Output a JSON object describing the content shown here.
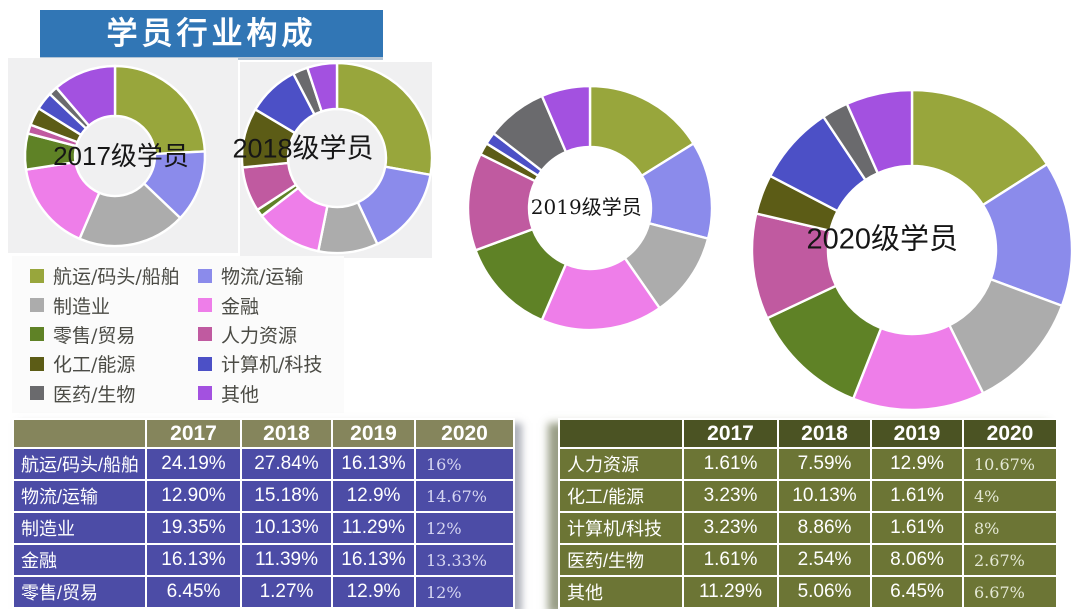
{
  "title": "学员行业构成",
  "chart_data": {
    "type": "pie",
    "variant": "donut-multiples",
    "unit": "%",
    "start_angle_deg": 0,
    "direction": "clockwise",
    "categories": [
      "航运/码头/船舶",
      "物流/运输",
      "制造业",
      "金融",
      "零售/贸易",
      "人力资源",
      "化工/能源",
      "计算机/科技",
      "医药/生物",
      "其他"
    ],
    "colors": [
      "#98A63C",
      "#8B8BEB",
      "#ACACAC",
      "#EE7EE9",
      "#5F8226",
      "#C05AA0",
      "#5C5C16",
      "#4C50C6",
      "#6A6A6D",
      "#A351E0"
    ],
    "series": [
      {
        "name": "2017级学员",
        "values": [
          24.19,
          12.9,
          19.35,
          16.13,
          6.45,
          1.61,
          3.23,
          3.23,
          1.61,
          11.29
        ]
      },
      {
        "name": "2018级学员",
        "values": [
          27.84,
          15.18,
          10.13,
          11.39,
          1.27,
          7.59,
          10.13,
          8.86,
          2.54,
          5.06
        ]
      },
      {
        "name": "2019级学员",
        "values": [
          16.13,
          12.9,
          11.29,
          16.13,
          12.9,
          12.9,
          1.61,
          1.61,
          8.06,
          6.45
        ]
      },
      {
        "name": "2020级学员",
        "values": [
          16,
          14.67,
          12,
          13.33,
          12,
          10.67,
          4,
          8,
          2.67,
          6.67
        ]
      }
    ],
    "legend_position": "bottom-left"
  },
  "legend": {
    "items": [
      {
        "label": "航运/码头/船舶",
        "color": "#98A63C"
      },
      {
        "label": "物流/运输",
        "color": "#8B8BEB"
      },
      {
        "label": "制造业",
        "color": "#ACACAC"
      },
      {
        "label": "金融",
        "color": "#EE7EE9"
      },
      {
        "label": "零售/贸易",
        "color": "#5F8226"
      },
      {
        "label": "人力资源",
        "color": "#C05AA0"
      },
      {
        "label": "化工/能源",
        "color": "#5C5C16"
      },
      {
        "label": "计算机/科技",
        "color": "#4C50C6"
      },
      {
        "label": "医药/生物",
        "color": "#6A6A6D"
      },
      {
        "label": "其他",
        "color": "#A351E0"
      }
    ]
  },
  "tables": {
    "left": {
      "years": [
        "2017",
        "2018",
        "2019",
        "2020"
      ],
      "rows": [
        {
          "label": "航运/码头/船舶",
          "values": [
            "24.19%",
            "27.84%",
            "16.13%",
            "16%"
          ]
        },
        {
          "label": "物流/运输",
          "values": [
            "12.90%",
            "15.18%",
            "12.9%",
            "14.67%"
          ]
        },
        {
          "label": "制造业",
          "values": [
            "19.35%",
            "10.13%",
            "11.29%",
            "12%"
          ]
        },
        {
          "label": "金融",
          "values": [
            "16.13%",
            "11.39%",
            "16.13%",
            "13.33%"
          ]
        },
        {
          "label": "零售/贸易",
          "values": [
            "6.45%",
            "1.27%",
            "12.9%",
            "12%"
          ]
        }
      ]
    },
    "right": {
      "years": [
        "2017",
        "2018",
        "2019",
        "2020"
      ],
      "rows": [
        {
          "label": "人力资源",
          "values": [
            "1.61%",
            "7.59%",
            "12.9%",
            "10.67%"
          ]
        },
        {
          "label": "化工/能源",
          "values": [
            "3.23%",
            "10.13%",
            "1.61%",
            "4%"
          ]
        },
        {
          "label": "计算机/科技",
          "values": [
            "3.23%",
            "8.86%",
            "1.61%",
            "8%"
          ]
        },
        {
          "label": "医药/生物",
          "values": [
            "1.61%",
            "2.54%",
            "8.06%",
            "2.67%"
          ]
        },
        {
          "label": "其他",
          "values": [
            "11.29%",
            "5.06%",
            "6.45%",
            "6.67%"
          ]
        }
      ]
    }
  },
  "colors": {
    "banner": "#3176B5",
    "left_table_header": "#85855C",
    "left_table_row": "#4C4CA6",
    "right_table_header": "#4B5323",
    "right_table_row": "#6C7535",
    "panel_background": "#F0F0F1"
  }
}
